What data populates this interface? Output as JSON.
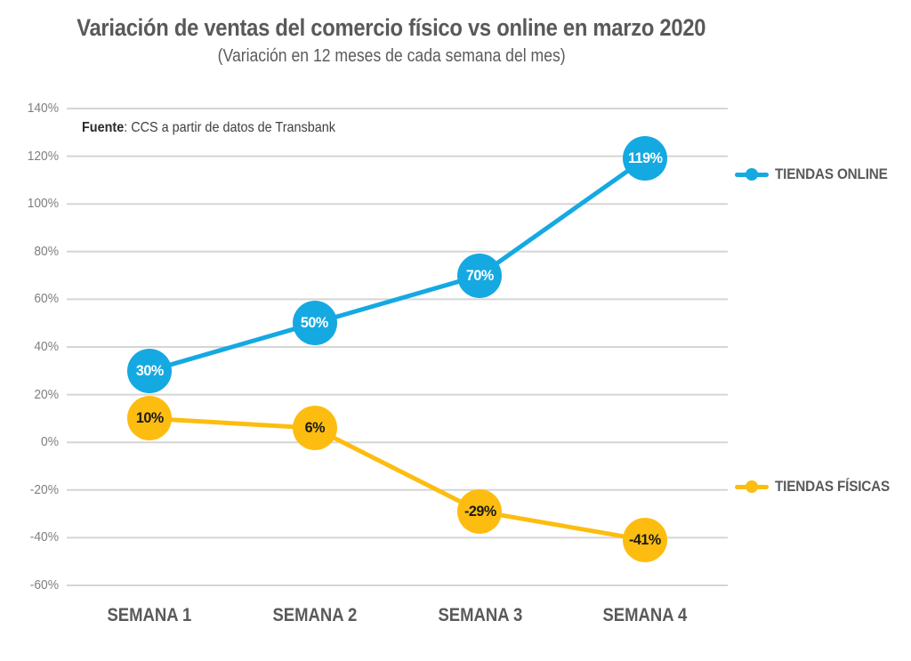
{
  "header": {
    "title": "Variación de ventas del comercio físico vs online en marzo 2020",
    "subtitle": "(Variación en 12 meses de cada semana del mes)"
  },
  "source": {
    "label": "Fuente",
    "text": ": CCS a partir de datos de Transbank"
  },
  "colors": {
    "online": "#15A9E2",
    "fisicas": "#FDBD10",
    "grid": "#D5D5D5",
    "axis_text": "#7F7F7F",
    "heading_text": "#58595B"
  },
  "chart_data": {
    "type": "line",
    "title": "Variación de ventas del comercio físico vs online en marzo 2020",
    "subtitle": "(Variación en 12 meses de cada semana del mes)",
    "categories": [
      "SEMANA 1",
      "SEMANA 2",
      "SEMANA 3",
      "SEMANA 4"
    ],
    "series": [
      {
        "name": "TIENDAS ONLINE",
        "values": [
          30,
          50,
          70,
          119
        ],
        "color": "#15A9E2",
        "label_color": "#FFFFFF"
      },
      {
        "name": "TIENDAS FÍSICAS",
        "values": [
          10,
          6,
          -29,
          -41
        ],
        "color": "#FDBD10",
        "label_color": "#1A1A1A"
      }
    ],
    "ylim": [
      -60,
      140
    ],
    "ytick_step": 20,
    "ytick_suffix": "%",
    "grid": true,
    "legend_position": "right"
  }
}
